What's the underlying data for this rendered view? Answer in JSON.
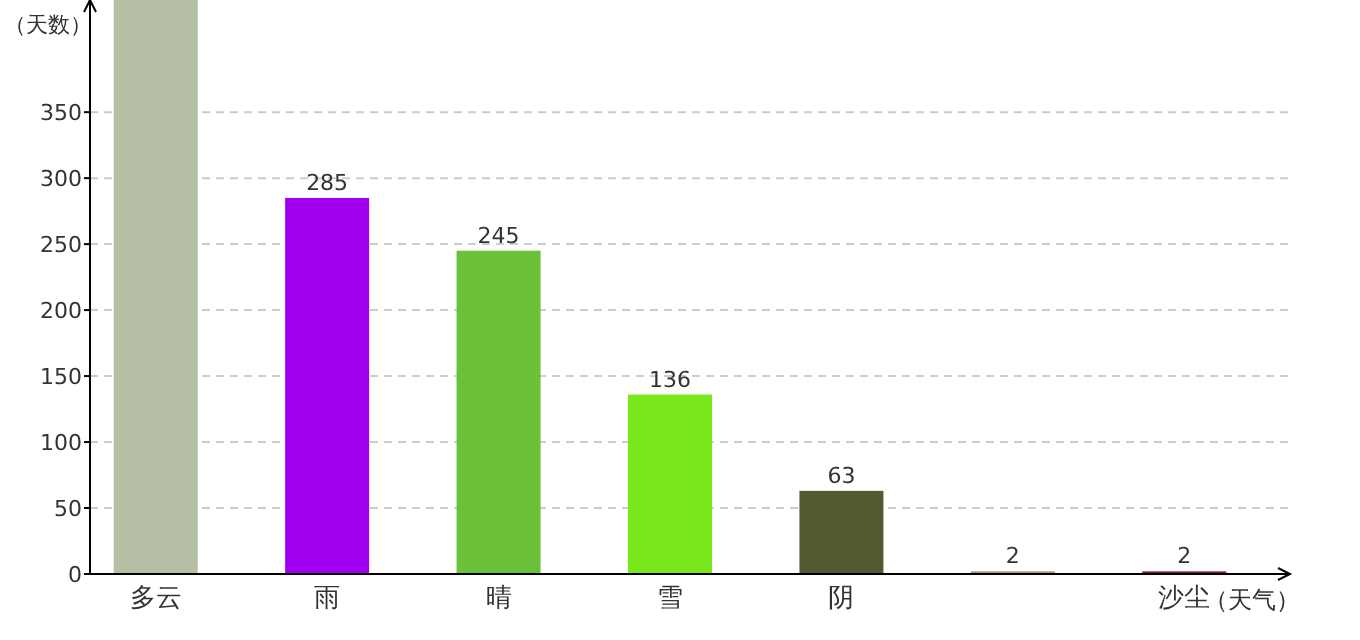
{
  "chart_data": {
    "type": "bar",
    "xlabel": "（天气）",
    "ylabel": "（天数）",
    "categories": [
      "多云",
      "雨",
      "晴",
      "雪",
      "阴",
      null,
      "沙尘"
    ],
    "values": [
      435,
      285,
      245,
      136,
      63,
      2,
      2
    ],
    "colors": [
      "#b5bfa3",
      "#a000f0",
      "#6cc13a",
      "#79e81a",
      "#525a2f",
      "#a8946a",
      "#8b1a3a"
    ],
    "value_labels": [
      null,
      "285",
      "245",
      "136",
      "63",
      "2",
      "2"
    ],
    "ylim": [
      0,
      435
    ],
    "yticks": [
      0,
      50,
      100,
      150,
      200,
      250,
      300,
      350
    ],
    "grid": "y"
  }
}
